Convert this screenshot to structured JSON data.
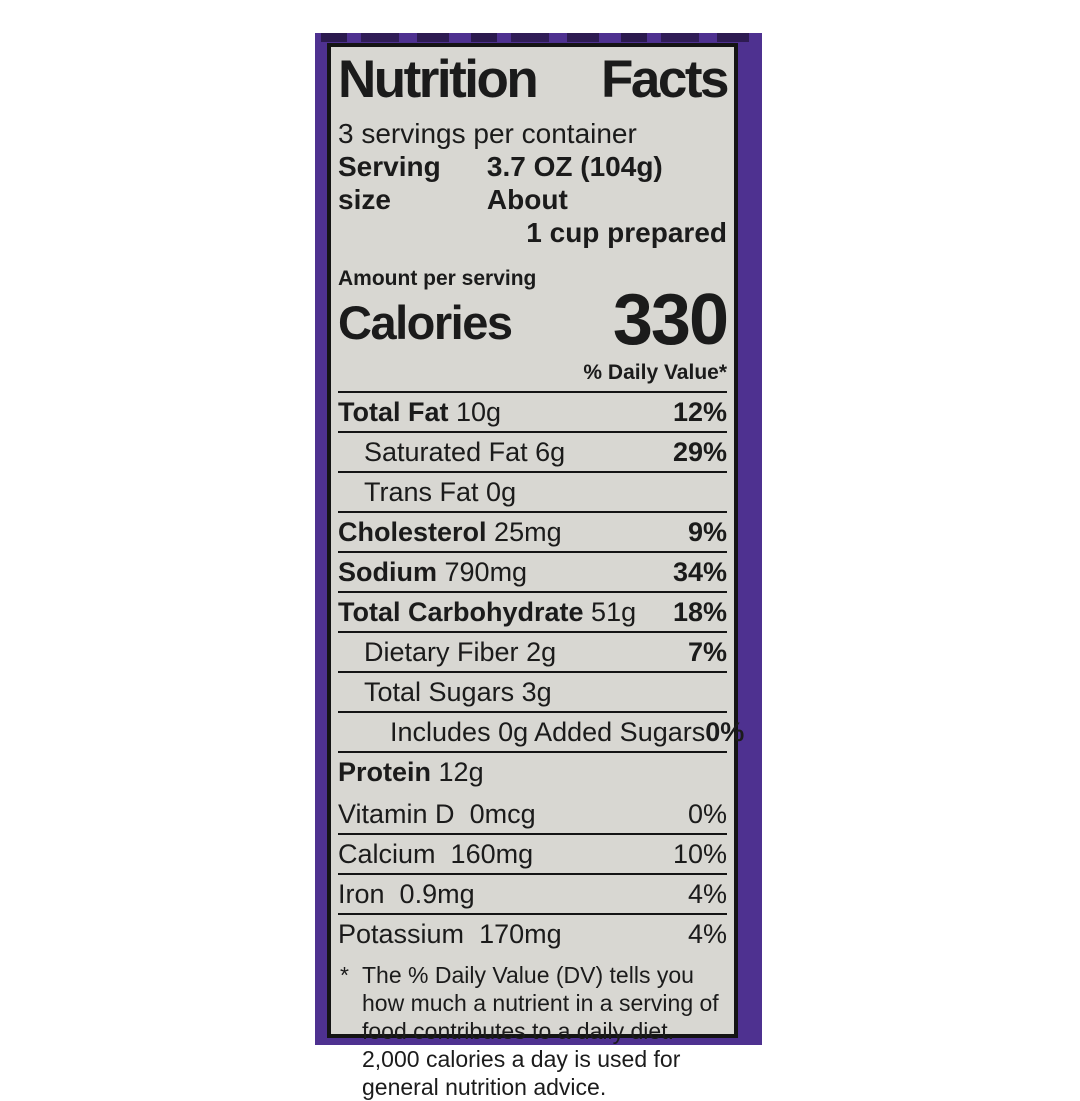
{
  "package": {
    "color": "#4e3190"
  },
  "label": {
    "background": "#d8d7d2",
    "title_left": "Nutrition",
    "title_right": "Facts",
    "servings_per_container": "3 servings per container",
    "serving_size_label": "Serving size",
    "serving_size_value_line1": "3.7 OZ (104g) About",
    "serving_size_value_line2": "1 cup prepared",
    "amount_per_serving": "Amount per serving",
    "calories_label": "Calories",
    "calories_value": "330",
    "daily_value_header": "% Daily Value*",
    "nutrients": [
      {
        "name": "Total Fat",
        "amount": "10g",
        "dv": "12%"
      },
      {
        "name": "Saturated Fat",
        "amount": "6g",
        "dv": "29%"
      },
      {
        "name": "Trans Fat",
        "amount": "0g",
        "dv": ""
      },
      {
        "name": "Cholesterol",
        "amount": "25mg",
        "dv": "9%"
      },
      {
        "name": "Sodium",
        "amount": "790mg",
        "dv": "34%"
      },
      {
        "name": "Total Carbohydrate",
        "amount": "51g",
        "dv": "18%"
      },
      {
        "name": "Dietary Fiber",
        "amount": "2g",
        "dv": "7%"
      },
      {
        "name": "Total Sugars",
        "amount": "3g",
        "dv": ""
      },
      {
        "name": "Includes 0g Added Sugars",
        "amount": "",
        "dv": "0%"
      },
      {
        "name": "Protein",
        "amount": "12g",
        "dv": ""
      }
    ],
    "vitamins": [
      {
        "name": "Vitamin D",
        "amount": "0mcg",
        "dv": "0%"
      },
      {
        "name": "Calcium",
        "amount": "160mg",
        "dv": "10%"
      },
      {
        "name": "Iron",
        "amount": "0.9mg",
        "dv": "4%"
      },
      {
        "name": "Potassium",
        "amount": "170mg",
        "dv": "4%"
      }
    ],
    "footnote_marker": "*",
    "footnote": "The % Daily Value (DV) tells you how much a nutrient in a serving of food contributes to a daily diet. 2,000 calories a day is used for general nutrition advice."
  }
}
